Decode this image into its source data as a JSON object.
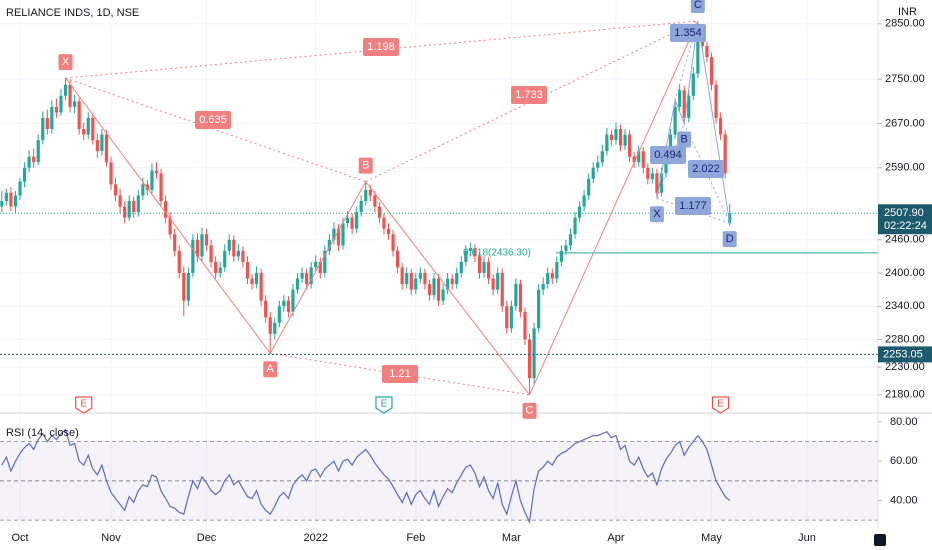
{
  "chart_data": [
    {
      "type": "candlestick",
      "title": "RELIANCE INDS, 1D, NSE",
      "currency": "INR",
      "xlim": [
        -4.4,
        188.6
      ],
      "ylim": [
        2149,
        2893
      ],
      "grid": true,
      "up_color": "#26a69a",
      "down_color": "#ef5350",
      "yticks": [
        {
          "value": 2850,
          "label": "2850.00"
        },
        {
          "value": 2750,
          "label": "2750.00"
        },
        {
          "value": 2670,
          "label": "2670.00"
        },
        {
          "value": 2590,
          "label": "2590.00"
        },
        {
          "value": 2460,
          "label": "2460.00"
        },
        {
          "value": 2400,
          "label": "2400.00"
        },
        {
          "value": 2340,
          "label": "2340.00"
        },
        {
          "value": 2280,
          "label": "2280.00"
        },
        {
          "value": 2230,
          "label": "2230.00"
        },
        {
          "value": 2180,
          "label": "2180.00"
        }
      ],
      "last_price": {
        "value": 2507.9,
        "label": "2507.90",
        "countdown": "02:22:24"
      },
      "price_line": 2253.05,
      "fib_level": {
        "value": 2436.3,
        "label": "0.618(2436.30)"
      },
      "ohlc": [
        [
          2520,
          2548,
          2510,
          2530
        ],
        [
          2530,
          2552,
          2522,
          2545
        ],
        [
          2545,
          2555,
          2512,
          2520
        ],
        [
          2520,
          2548,
          2508,
          2540
        ],
        [
          2540,
          2572,
          2532,
          2565
        ],
        [
          2565,
          2600,
          2555,
          2590
        ],
        [
          2590,
          2622,
          2582,
          2610
        ],
        [
          2610,
          2625,
          2590,
          2600
        ],
        [
          2600,
          2650,
          2595,
          2640
        ],
        [
          2640,
          2692,
          2632,
          2680
        ],
        [
          2680,
          2695,
          2650,
          2660
        ],
        [
          2660,
          2712,
          2652,
          2700
        ],
        [
          2700,
          2715,
          2680,
          2690
        ],
        [
          2690,
          2732,
          2684,
          2720
        ],
        [
          2720,
          2752,
          2712,
          2740
        ],
        [
          2740,
          2748,
          2690,
          2700
        ],
        [
          2700,
          2722,
          2688,
          2710
        ],
        [
          2710,
          2716,
          2650,
          2660
        ],
        [
          2660,
          2672,
          2640,
          2650
        ],
        [
          2650,
          2690,
          2642,
          2680
        ],
        [
          2680,
          2688,
          2632,
          2640
        ],
        [
          2640,
          2652,
          2608,
          2620
        ],
        [
          2620,
          2660,
          2612,
          2650
        ],
        [
          2650,
          2658,
          2592,
          2600
        ],
        [
          2600,
          2610,
          2550,
          2560
        ],
        [
          2560,
          2572,
          2530,
          2540
        ],
        [
          2540,
          2552,
          2508,
          2520
        ],
        [
          2520,
          2530,
          2490,
          2500
        ],
        [
          2500,
          2540,
          2494,
          2530
        ],
        [
          2530,
          2538,
          2500,
          2510
        ],
        [
          2510,
          2550,
          2502,
          2540
        ],
        [
          2540,
          2572,
          2532,
          2560
        ],
        [
          2560,
          2568,
          2540,
          2550
        ],
        [
          2550,
          2598,
          2544,
          2585
        ],
        [
          2585,
          2600,
          2570,
          2580
        ],
        [
          2580,
          2588,
          2522,
          2530
        ],
        [
          2530,
          2540,
          2490,
          2500
        ],
        [
          2500,
          2510,
          2462,
          2470
        ],
        [
          2470,
          2480,
          2430,
          2440
        ],
        [
          2440,
          2450,
          2390,
          2400
        ],
        [
          2400,
          2412,
          2322,
          2350
        ],
        [
          2350,
          2410,
          2340,
          2400
        ],
        [
          2400,
          2470,
          2392,
          2460
        ],
        [
          2460,
          2472,
          2420,
          2430
        ],
        [
          2430,
          2482,
          2422,
          2470
        ],
        [
          2470,
          2480,
          2440,
          2450
        ],
        [
          2450,
          2460,
          2410,
          2420
        ],
        [
          2420,
          2430,
          2390,
          2400
        ],
        [
          2400,
          2420,
          2392,
          2410
        ],
        [
          2410,
          2452,
          2402,
          2440
        ],
        [
          2440,
          2470,
          2432,
          2460
        ],
        [
          2460,
          2468,
          2420,
          2430
        ],
        [
          2430,
          2452,
          2422,
          2440
        ],
        [
          2440,
          2448,
          2410,
          2420
        ],
        [
          2420,
          2430,
          2380,
          2390
        ],
        [
          2390,
          2398,
          2370,
          2380
        ],
        [
          2380,
          2412,
          2372,
          2400
        ],
        [
          2400,
          2408,
          2340,
          2350
        ],
        [
          2350,
          2360,
          2310,
          2320
        ],
        [
          2320,
          2330,
          2255,
          2290
        ],
        [
          2290,
          2320,
          2280,
          2310
        ],
        [
          2310,
          2350,
          2302,
          2340
        ],
        [
          2340,
          2360,
          2330,
          2350
        ],
        [
          2350,
          2358,
          2320,
          2330
        ],
        [
          2330,
          2380,
          2322,
          2370
        ],
        [
          2370,
          2400,
          2362,
          2390
        ],
        [
          2390,
          2410,
          2382,
          2400
        ],
        [
          2400,
          2408,
          2370,
          2380
        ],
        [
          2380,
          2420,
          2372,
          2410
        ],
        [
          2410,
          2432,
          2402,
          2420
        ],
        [
          2420,
          2428,
          2390,
          2400
        ],
        [
          2400,
          2450,
          2392,
          2440
        ],
        [
          2440,
          2470,
          2432,
          2460
        ],
        [
          2460,
          2492,
          2452,
          2480
        ],
        [
          2480,
          2488,
          2440,
          2450
        ],
        [
          2450,
          2500,
          2442,
          2490
        ],
        [
          2490,
          2512,
          2482,
          2500
        ],
        [
          2500,
          2508,
          2470,
          2480
        ],
        [
          2480,
          2520,
          2472,
          2510
        ],
        [
          2510,
          2540,
          2502,
          2530
        ],
        [
          2530,
          2565,
          2522,
          2550
        ],
        [
          2550,
          2558,
          2530,
          2540
        ],
        [
          2540,
          2548,
          2510,
          2520
        ],
        [
          2520,
          2528,
          2490,
          2500
        ],
        [
          2500,
          2508,
          2470,
          2480
        ],
        [
          2480,
          2490,
          2460,
          2470
        ],
        [
          2470,
          2478,
          2430,
          2440
        ],
        [
          2440,
          2448,
          2400,
          2410
        ],
        [
          2410,
          2418,
          2370,
          2380
        ],
        [
          2380,
          2410,
          2372,
          2400
        ],
        [
          2400,
          2408,
          2360,
          2370
        ],
        [
          2370,
          2400,
          2362,
          2390
        ],
        [
          2390,
          2410,
          2382,
          2400
        ],
        [
          2400,
          2408,
          2370,
          2380
        ],
        [
          2380,
          2388,
          2350,
          2360
        ],
        [
          2360,
          2400,
          2352,
          2390
        ],
        [
          2390,
          2398,
          2340,
          2350
        ],
        [
          2350,
          2380,
          2342,
          2370
        ],
        [
          2370,
          2400,
          2362,
          2390
        ],
        [
          2390,
          2398,
          2370,
          2380
        ],
        [
          2380,
          2410,
          2372,
          2400
        ],
        [
          2400,
          2430,
          2392,
          2420
        ],
        [
          2420,
          2450,
          2412,
          2440
        ],
        [
          2440,
          2455,
          2430,
          2445
        ],
        [
          2445,
          2452,
          2420,
          2430
        ],
        [
          2430,
          2438,
          2390,
          2400
        ],
        [
          2400,
          2430,
          2392,
          2420
        ],
        [
          2420,
          2428,
          2380,
          2390
        ],
        [
          2390,
          2398,
          2360,
          2370
        ],
        [
          2370,
          2410,
          2362,
          2400
        ],
        [
          2400,
          2408,
          2330,
          2340
        ],
        [
          2340,
          2350,
          2290,
          2300
        ],
        [
          2300,
          2350,
          2292,
          2340
        ],
        [
          2340,
          2390,
          2332,
          2380
        ],
        [
          2380,
          2388,
          2320,
          2330
        ],
        [
          2330,
          2338,
          2270,
          2280
        ],
        [
          2280,
          2290,
          2180,
          2210
        ],
        [
          2210,
          2310,
          2200,
          2300
        ],
        [
          2300,
          2380,
          2292,
          2370
        ],
        [
          2370,
          2392,
          2360,
          2380
        ],
        [
          2380,
          2410,
          2372,
          2400
        ],
        [
          2400,
          2408,
          2380,
          2390
        ],
        [
          2390,
          2430,
          2382,
          2420
        ],
        [
          2420,
          2450,
          2412,
          2440
        ],
        [
          2440,
          2460,
          2432,
          2450
        ],
        [
          2450,
          2480,
          2442,
          2470
        ],
        [
          2470,
          2510,
          2462,
          2500
        ],
        [
          2500,
          2530,
          2492,
          2520
        ],
        [
          2520,
          2550,
          2512,
          2540
        ],
        [
          2540,
          2580,
          2532,
          2570
        ],
        [
          2570,
          2600,
          2562,
          2590
        ],
        [
          2590,
          2612,
          2582,
          2600
        ],
        [
          2600,
          2632,
          2592,
          2620
        ],
        [
          2620,
          2662,
          2612,
          2650
        ],
        [
          2650,
          2658,
          2630,
          2640
        ],
        [
          2640,
          2672,
          2632,
          2660
        ],
        [
          2660,
          2668,
          2620,
          2630
        ],
        [
          2630,
          2660,
          2622,
          2650
        ],
        [
          2650,
          2658,
          2600,
          2610
        ],
        [
          2610,
          2618,
          2590,
          2600
        ],
        [
          2600,
          2630,
          2592,
          2620
        ],
        [
          2620,
          2628,
          2580,
          2590
        ],
        [
          2590,
          2598,
          2560,
          2570
        ],
        [
          2570,
          2590,
          2562,
          2580
        ],
        [
          2580,
          2588,
          2535,
          2545
        ],
        [
          2545,
          2590,
          2538,
          2580
        ],
        [
          2580,
          2630,
          2572,
          2620
        ],
        [
          2620,
          2660,
          2612,
          2650
        ],
        [
          2650,
          2712,
          2642,
          2700
        ],
        [
          2700,
          2742,
          2692,
          2730
        ],
        [
          2730,
          2738,
          2670,
          2680
        ],
        [
          2680,
          2730,
          2672,
          2720
        ],
        [
          2720,
          2772,
          2712,
          2760
        ],
        [
          2760,
          2855,
          2752,
          2820
        ],
        [
          2820,
          2840,
          2800,
          2810
        ],
        [
          2810,
          2818,
          2780,
          2790
        ],
        [
          2790,
          2798,
          2730,
          2740
        ],
        [
          2740,
          2748,
          2670,
          2680
        ],
        [
          2680,
          2690,
          2640,
          2650
        ],
        [
          2650,
          2658,
          2570,
          2580
        ],
        [
          2490,
          2525,
          2485,
          2507.9
        ]
      ],
      "patterns": [
        {
          "color": "#f08080",
          "text_color": "#ffffff",
          "points": [
            {
              "x": 10,
              "y": 2752,
              "label": "X"
            },
            {
              "x": 55,
              "y": 2255,
              "label": "A"
            },
            {
              "x": 76,
              "y": 2565,
              "label": "B"
            },
            {
              "x": 112,
              "y": 2180,
              "label": "C"
            },
            {
              "x": 149,
              "y": 2855,
              "label": null
            }
          ],
          "ratios": [
            "0.635",
            "1.21",
            "1.733",
            "1.198"
          ]
        },
        {
          "color": "#8fa6d8",
          "text_color": "#1a237e",
          "points": [
            {
              "x": 140,
              "y": 2535,
              "label": "X"
            },
            {
              "x": 144,
              "y": 2712,
              "label": null
            },
            {
              "x": 146,
              "y": 2670,
              "label": "B"
            },
            {
              "x": 149,
              "y": 2855,
              "label": "C"
            },
            {
              "x": 156,
              "y": 2490,
              "label": "D"
            }
          ],
          "ratios": [
            "1.354",
            "0.494",
            "2.022",
            "1.177"
          ]
        }
      ],
      "events": [
        {
          "x": 14,
          "label": "E",
          "color": "#ef5350"
        },
        {
          "x": 80,
          "label": "E",
          "color": "#26a69a"
        },
        {
          "x": 154,
          "label": "E",
          "color": "#ef5350"
        }
      ]
    },
    {
      "type": "line",
      "title": "RSI (14, close)",
      "color": "#5c6bc0",
      "xlim": [
        -4.4,
        188.6
      ],
      "ylim": [
        26,
        84
      ],
      "yticks": [
        {
          "value": 80,
          "label": "80.00"
        },
        {
          "value": 60,
          "label": "60.00"
        },
        {
          "value": 40,
          "label": "40.00"
        }
      ],
      "bands": [
        70,
        50,
        30
      ],
      "xticks": [
        {
          "value": 0,
          "label": "Oct"
        },
        {
          "value": 20,
          "label": "Nov"
        },
        {
          "value": 41,
          "label": "Dec"
        },
        {
          "value": 65,
          "label": "2022"
        },
        {
          "value": 87,
          "label": "Feb"
        },
        {
          "value": 108,
          "label": "Mar"
        },
        {
          "value": 131,
          "label": "Apr"
        },
        {
          "value": 152,
          "label": "May"
        },
        {
          "value": 173,
          "label": "Jun"
        }
      ],
      "values": [
        58,
        62,
        55,
        60,
        64,
        67,
        69,
        66,
        71,
        74,
        70,
        73,
        71,
        74,
        76,
        68,
        69,
        60,
        58,
        63,
        56,
        53,
        58,
        50,
        44,
        41,
        38,
        35,
        42,
        39,
        45,
        48,
        47,
        53,
        52,
        45,
        41,
        37,
        36,
        34,
        33,
        42,
        50,
        46,
        52,
        49,
        45,
        43,
        45,
        50,
        53,
        48,
        50,
        46,
        42,
        41,
        45,
        38,
        35,
        33,
        37,
        42,
        44,
        41,
        48,
        51,
        53,
        50,
        55,
        56,
        52,
        56,
        58,
        60,
        55,
        60,
        61,
        58,
        62,
        64,
        66,
        63,
        59,
        56,
        53,
        51,
        47,
        43,
        39,
        44,
        38,
        43,
        45,
        41,
        38,
        45,
        37,
        42,
        46,
        44,
        49,
        53,
        57,
        58,
        54,
        47,
        52,
        45,
        41,
        49,
        38,
        33,
        42,
        50,
        40,
        34,
        29,
        46,
        55,
        57,
        60,
        58,
        62,
        64,
        65,
        67,
        69,
        70,
        71,
        72,
        73,
        73,
        74,
        75,
        72,
        73,
        66,
        68,
        60,
        58,
        62,
        56,
        52,
        54,
        48,
        56,
        61,
        64,
        68,
        70,
        63,
        67,
        70,
        73,
        70,
        66,
        58,
        50,
        46,
        42,
        40
      ]
    }
  ]
}
